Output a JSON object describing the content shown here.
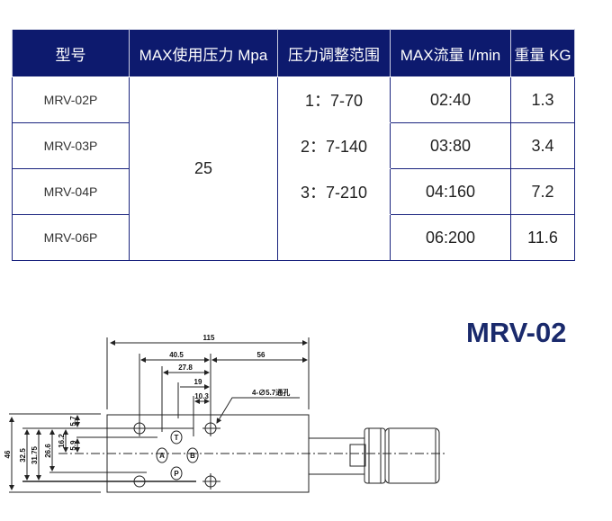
{
  "table": {
    "headers": [
      "型号",
      "MAX使用压力 Mpa",
      "压力调整范围",
      "MAX流量 l/min",
      "重量 KG"
    ],
    "models": [
      "MRV-02P",
      "MRV-03P",
      "MRV-04P",
      "MRV-06P"
    ],
    "max_pressure": "25",
    "ranges": [
      "1：7-70",
      "2：7-140",
      "3：7-210",
      ""
    ],
    "flows": [
      "02:40",
      "03:80",
      "04:160",
      "06:200"
    ],
    "weights": [
      "1.3",
      "3.4",
      "7.2",
      "11.6"
    ]
  },
  "drawing": {
    "title": "MRV-02",
    "dims": {
      "d115": "115",
      "d40_5": "40.5",
      "d56": "56",
      "d27_8": "27.8",
      "d19": "19",
      "d10_3": "10.3",
      "d46": "46",
      "d32_5": "32.5",
      "d31_75": "31.75",
      "d26_6": "26.6",
      "d16_2": "16.2",
      "d5_9": "5.9",
      "d5_7": "5.7"
    },
    "hole_note": "4-∅5.7通孔",
    "ports": {
      "t": "T",
      "a": "A",
      "b": "B",
      "p": "P"
    }
  }
}
